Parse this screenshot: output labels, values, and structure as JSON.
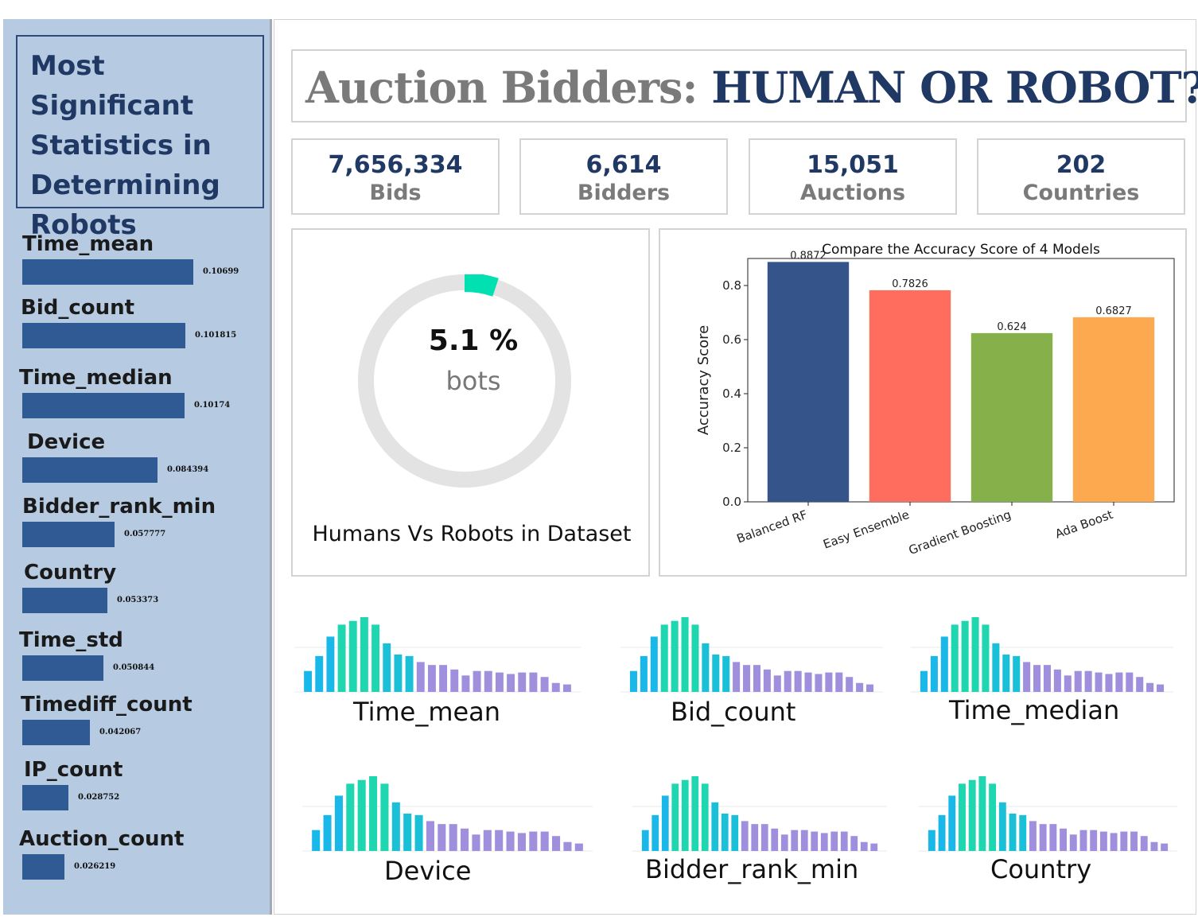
{
  "sidebar": {
    "title": "Most Significant Statistics in Determining Robots",
    "features": [
      {
        "label": "Time_mean",
        "value": "0.10699",
        "score": 0.10699
      },
      {
        "label": "Bid_count",
        "value": "0.101815",
        "score": 0.101815
      },
      {
        "label": "Time_median",
        "value": "0.10174",
        "score": 0.10174
      },
      {
        "label": "Device",
        "value": "0.084394",
        "score": 0.084394
      },
      {
        "label": "Bidder_rank_min",
        "value": "0.057777",
        "score": 0.057777
      },
      {
        "label": "Country",
        "value": "0.053373",
        "score": 0.053373
      },
      {
        "label": "Time_std",
        "value": "0.050844",
        "score": 0.050844
      },
      {
        "label": "Timediff_count",
        "value": "0.042067",
        "score": 0.042067
      },
      {
        "label": "IP_count",
        "value": "0.028752",
        "score": 0.028752
      },
      {
        "label": "Auction_count",
        "value": "0.026219",
        "score": 0.026219
      }
    ]
  },
  "header": {
    "title_part1": "Auction Bidders: ",
    "title_part2": "HUMAN OR ROBOT?"
  },
  "kpis": [
    {
      "value": "7,656,334",
      "label": "Bids"
    },
    {
      "value": "6,614",
      "label": "Bidders"
    },
    {
      "value": "15,051",
      "label": "Auctions"
    },
    {
      "value": "202",
      "label": "Countries"
    }
  ],
  "donut": {
    "percent_text": "5.1 %",
    "label": "bots",
    "caption": "Humans Vs Robots in Dataset",
    "fraction": 0.051,
    "colors": {
      "fill": "#00e0b0",
      "track": "#e3e3e3"
    }
  },
  "chart_data": {
    "type": "bar",
    "title": "Compare the Accuracy Score of 4 Models",
    "ylabel": "Accuracy Score",
    "xlabel": "",
    "categories": [
      "Balanced RF",
      "Easy Ensemble",
      "Gradient Boosting",
      "Ada Boost"
    ],
    "values": [
      0.8872,
      0.7826,
      0.624,
      0.6827
    ],
    "value_labels": [
      "0.8872",
      "0.7826",
      "0.624",
      "0.6827"
    ],
    "colors": [
      "#34548a",
      "#fe6d5e",
      "#86b04a",
      "#fca94f"
    ],
    "ylim": [
      0,
      0.9
    ],
    "yticks": [
      "0.0",
      "0.2",
      "0.4",
      "0.6",
      "0.8"
    ],
    "grid": false
  },
  "mini_charts": [
    {
      "caption": "Time_mean"
    },
    {
      "caption": "Bid_count"
    },
    {
      "caption": "Time_median"
    },
    {
      "caption": "Device"
    },
    {
      "caption": "Bidder_rank_min"
    },
    {
      "caption": "Country"
    }
  ]
}
